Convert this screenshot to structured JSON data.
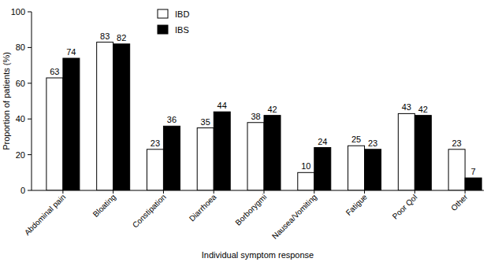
{
  "chart_data": {
    "type": "bar",
    "x_label": "Individual symptom response",
    "y_label": "Proportion of patients (%)",
    "categories": [
      "Abdominal pain",
      "Bloating",
      "Constipation",
      "Diarrhoea",
      "Borborygmi",
      "Nausea/Vomiting",
      "Fatigue",
      "Poor QoI",
      "Other"
    ],
    "series": [
      {
        "name": "IBD",
        "color": "#ffffff",
        "values": [
          63,
          83,
          23,
          35,
          38,
          10,
          25,
          43,
          23
        ]
      },
      {
        "name": "IBS",
        "color": "#000000",
        "values": [
          74,
          82,
          36,
          44,
          42,
          24,
          23,
          42,
          7
        ]
      }
    ],
    "ylim": [
      0,
      100
    ],
    "yticks": [
      0,
      20,
      40,
      60,
      80,
      100
    ],
    "grid": false,
    "data_labels": true,
    "legend": "top"
  }
}
